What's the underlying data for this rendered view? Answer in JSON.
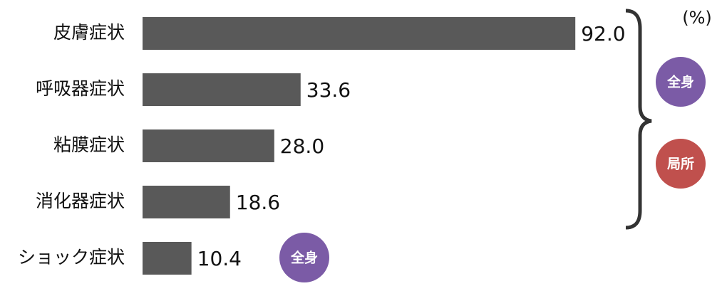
{
  "chart_data": {
    "type": "bar",
    "orientation": "horizontal",
    "unit": "(%)",
    "categories": [
      "皮膚症状",
      "呼吸器症状",
      "粘膜症状",
      "消化器症状",
      "ショック症状"
    ],
    "values": [
      92.0,
      33.6,
      28.0,
      18.6,
      10.4
    ],
    "value_labels": [
      "92.0",
      "33.6",
      "28.0",
      "18.6",
      "10.4"
    ],
    "color": "#595959",
    "annotations": [
      {
        "text": "全身",
        "color": "#7b5ba6"
      },
      {
        "text": "局所",
        "color": "#c0504d"
      },
      {
        "text": "全身",
        "color": "#7b5ba6"
      }
    ]
  }
}
